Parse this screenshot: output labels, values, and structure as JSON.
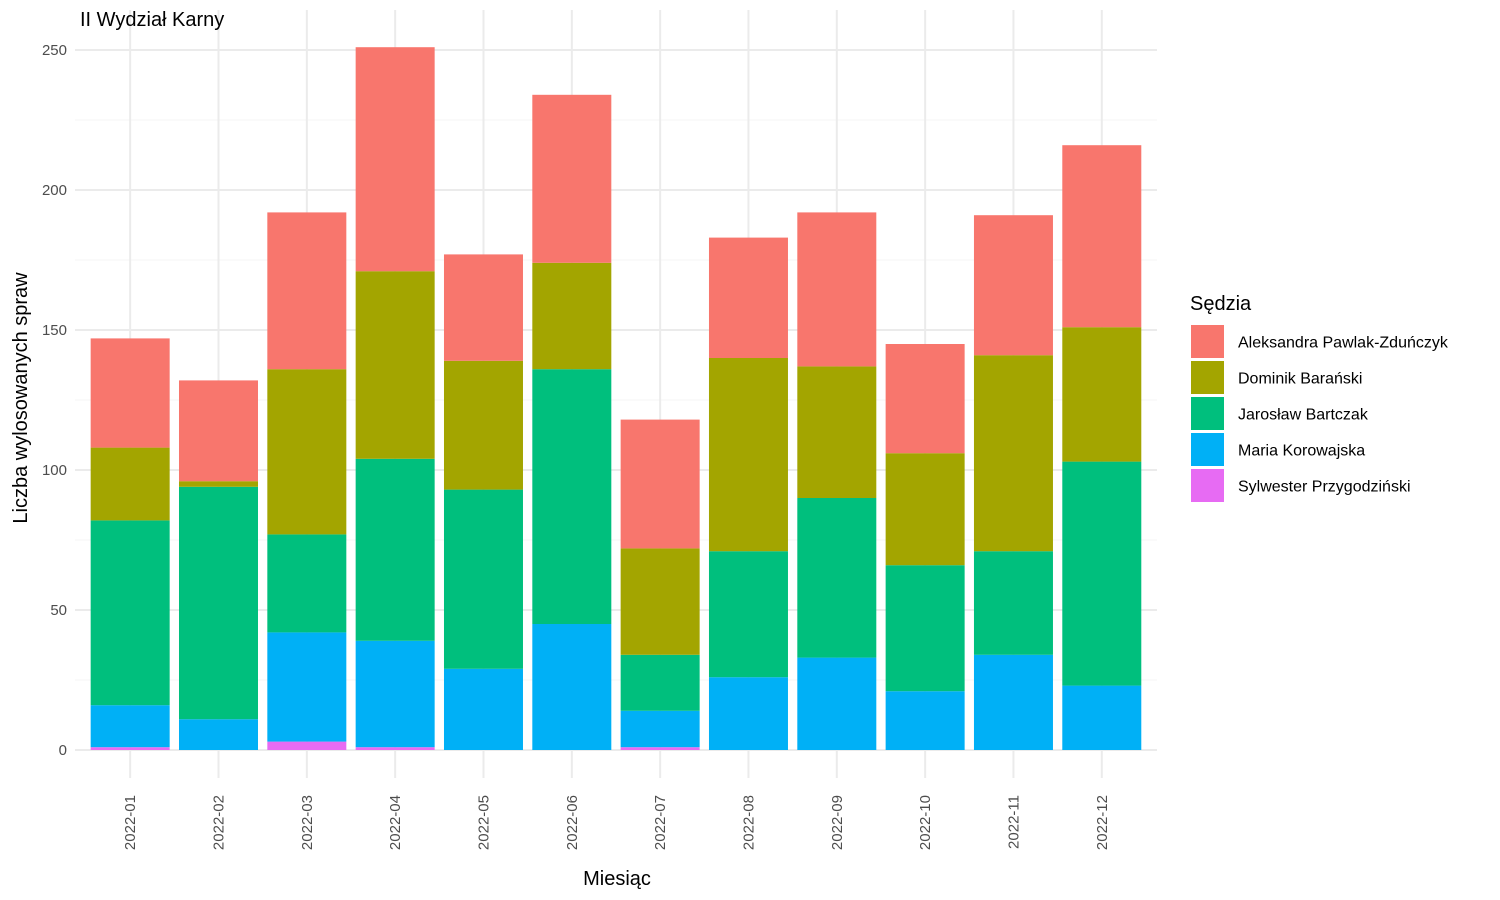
{
  "chart_data": {
    "type": "bar",
    "stacked": true,
    "title": "II Wydział Karny",
    "xlabel": "Miesiąc",
    "ylabel": "Liczba wylosowanych spraw",
    "ylim": [
      0,
      250
    ],
    "yticks": [
      "0",
      "50",
      "100",
      "150",
      "200",
      "250"
    ],
    "ytick_values": [
      0,
      50,
      100,
      150,
      200,
      250
    ],
    "grid": true,
    "legend_title": "Sędzia",
    "legend_position": "right",
    "categories": [
      "2022-01",
      "2022-02",
      "2022-03",
      "2022-04",
      "2022-05",
      "2022-06",
      "2022-07",
      "2022-08",
      "2022-09",
      "2022-10",
      "2022-11",
      "2022-12"
    ],
    "series": [
      {
        "name": "Sylwester Przygodziński",
        "color": "#E76BF3",
        "values": [
          1,
          0,
          3,
          1,
          0,
          0,
          1,
          0,
          0,
          0,
          0,
          0
        ]
      },
      {
        "name": "Maria Korowajska",
        "color": "#00B0F6",
        "values": [
          15,
          11,
          39,
          38,
          29,
          45,
          13,
          26,
          33,
          21,
          34,
          23
        ]
      },
      {
        "name": "Jarosław Bartczak",
        "color": "#00BF7D",
        "values": [
          66,
          83,
          35,
          65,
          64,
          91,
          20,
          45,
          57,
          45,
          37,
          80
        ]
      },
      {
        "name": "Dominik Barański",
        "color": "#A3A500",
        "values": [
          26,
          2,
          59,
          67,
          46,
          38,
          38,
          69,
          47,
          40,
          70,
          48
        ]
      },
      {
        "name": "Aleksandra Pawlak-Zduńczyk",
        "color": "#F8766D",
        "values": [
          39,
          36,
          56,
          80,
          38,
          60,
          46,
          43,
          55,
          39,
          50,
          65
        ]
      }
    ],
    "legend_order": [
      "Aleksandra Pawlak-Zduńczyk",
      "Dominik Barański",
      "Jarosław Bartczak",
      "Maria Korowajska",
      "Sylwester Przygodziński"
    ]
  }
}
